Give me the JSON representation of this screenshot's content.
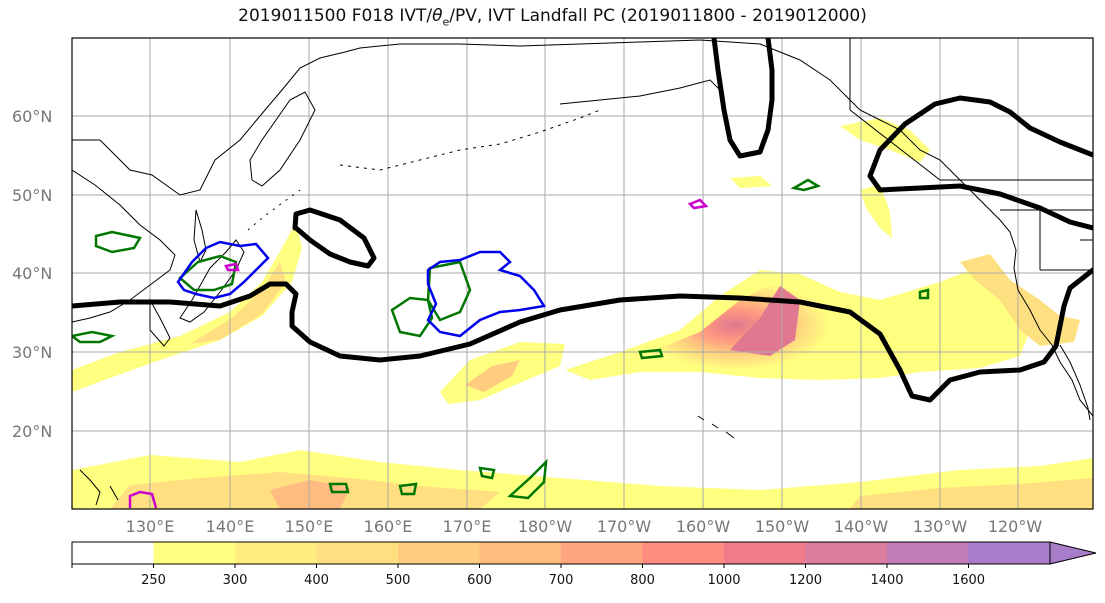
{
  "title_main": "2019011500 F018 IVT/",
  "title_theta": "θ",
  "title_theta_sub": "e",
  "title_rest": "/PV, IVT Landfall PC (2019011800 - 2019012000)",
  "lat_labels": [
    "60°N",
    "50°N",
    "40°N",
    "30°N",
    "20°N"
  ],
  "lon_labels": [
    "130°E",
    "140°E",
    "150°E",
    "160°E",
    "170°E",
    "180°W",
    "170°W",
    "160°W",
    "150°W",
    "140°W",
    "130°W",
    "120°W"
  ],
  "colorbar": {
    "ticks": [
      "250",
      "300",
      "400",
      "500",
      "600",
      "700",
      "800",
      "1000",
      "1200",
      "1400",
      "1600"
    ],
    "colors": [
      "#ffffff",
      "#ffff80",
      "#ffed80",
      "#ffdf80",
      "#ffcc80",
      "#ffbb80",
      "#ffa580",
      "#ff8c80",
      "#f07c8a",
      "#dc7da0",
      "#c07db8",
      "#a87cc8"
    ],
    "extend": "max"
  },
  "colors": {
    "pv_contour": "#007700",
    "theta_contour": "#0000ee",
    "jet_line": "#000000",
    "magenta_contour": "#cc00cc",
    "gridline": "#aaaaaa",
    "coastline": "#000000"
  }
}
